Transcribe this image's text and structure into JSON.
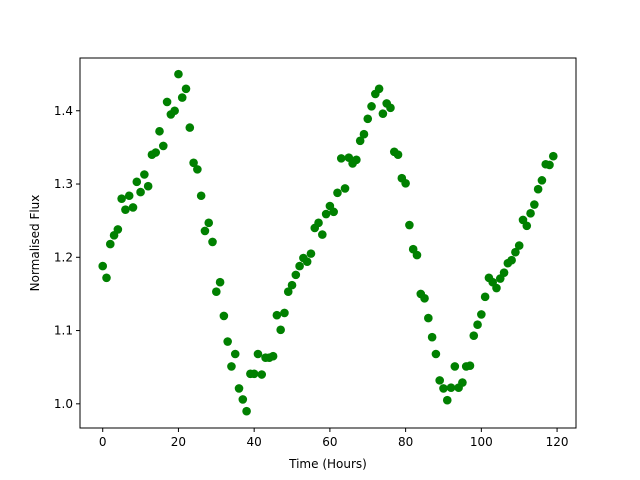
{
  "chart_data": {
    "type": "scatter",
    "title": "",
    "xlabel": "Time (Hours)",
    "ylabel": "Normalised Flux",
    "xlim": [
      -6,
      125
    ],
    "ylim": [
      0.967,
      1.472
    ],
    "xticks": [
      0,
      20,
      40,
      60,
      80,
      100,
      120
    ],
    "yticks": [
      1.0,
      1.1,
      1.2,
      1.3,
      1.4
    ],
    "grid": false,
    "legend": "none",
    "marker_color": "#008000",
    "series": [
      {
        "x": [
          0,
          1,
          2,
          3,
          4,
          5,
          6,
          7,
          8,
          9,
          10,
          11,
          12,
          13,
          14,
          15,
          16,
          17,
          18,
          19,
          20,
          21,
          22,
          23,
          24,
          25,
          26,
          27,
          28,
          29,
          30,
          31,
          32,
          33,
          34,
          35,
          36,
          37,
          38,
          39,
          40,
          41,
          42,
          43,
          44,
          45,
          46,
          47,
          48,
          49,
          50,
          51,
          52,
          53,
          54,
          55,
          56,
          57,
          58,
          59,
          60,
          61,
          62,
          63,
          64,
          65,
          66,
          67,
          68,
          69,
          70,
          71,
          72,
          73,
          74,
          75,
          76,
          77,
          78,
          79,
          80,
          81,
          82,
          83,
          84,
          85,
          86,
          87,
          88,
          89,
          90,
          91,
          92,
          93,
          94,
          95,
          96,
          97,
          98,
          99,
          100,
          101,
          102,
          103,
          104,
          105,
          106,
          107,
          108,
          109,
          110,
          111,
          112,
          113,
          114,
          115,
          116,
          117,
          118,
          119
        ],
        "y": [
          1.188,
          1.172,
          1.218,
          1.23,
          1.238,
          1.28,
          1.265,
          1.284,
          1.268,
          1.303,
          1.289,
          1.313,
          1.297,
          1.34,
          1.343,
          1.372,
          1.352,
          1.412,
          1.395,
          1.4,
          1.45,
          1.418,
          1.43,
          1.377,
          1.329,
          1.32,
          1.284,
          1.236,
          1.247,
          1.221,
          1.153,
          1.166,
          1.12,
          1.085,
          1.051,
          1.068,
          1.021,
          1.006,
          0.99,
          1.041,
          1.041,
          1.068,
          1.04,
          1.063,
          1.063,
          1.065,
          1.121,
          1.101,
          1.124,
          1.153,
          1.162,
          1.176,
          1.188,
          1.199,
          1.194,
          1.205,
          1.24,
          1.247,
          1.231,
          1.259,
          1.27,
          1.262,
          1.288,
          1.335,
          1.294,
          1.336,
          1.328,
          1.333,
          1.359,
          1.368,
          1.389,
          1.406,
          1.423,
          1.43,
          1.396,
          1.41,
          1.404,
          1.344,
          1.34,
          1.308,
          1.301,
          1.244,
          1.211,
          1.203,
          1.15,
          1.144,
          1.117,
          1.091,
          1.068,
          1.032,
          1.021,
          1.005,
          1.022,
          1.051,
          1.022,
          1.029,
          1.051,
          1.052,
          1.093,
          1.108,
          1.122,
          1.146,
          1.172,
          1.166,
          1.158,
          1.171,
          1.179,
          1.192,
          1.196,
          1.207,
          1.216,
          1.251,
          1.243,
          1.26,
          1.272,
          1.293,
          1.305,
          1.327,
          1.326,
          1.338
        ]
      }
    ]
  }
}
